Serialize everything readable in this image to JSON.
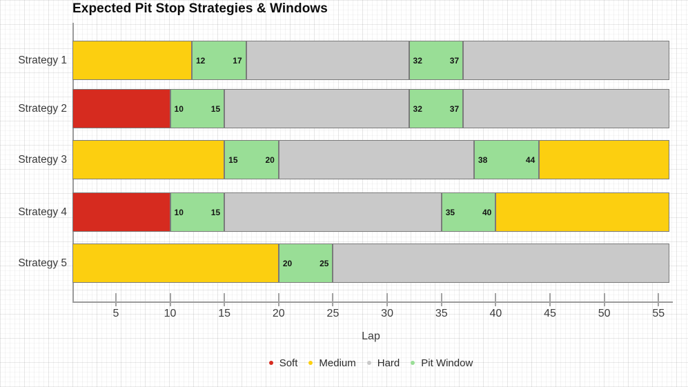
{
  "chart_data": {
    "type": "bar",
    "subtype": "horizontal-stacked-timeline",
    "title": "Expected Pit Stop Strategies & Windows",
    "xlabel": "Lap",
    "x_domain": [
      1,
      56
    ],
    "x_ticks": [
      5,
      10,
      15,
      20,
      25,
      30,
      35,
      40,
      45,
      50,
      55
    ],
    "grid": "fine graph-paper background",
    "legend_position": "bottom-center",
    "categories": [
      "Strategy 1",
      "Strategy 2",
      "Strategy 3",
      "Strategy 4",
      "Strategy 5"
    ],
    "colors": {
      "Soft": "#D62B1F",
      "Medium": "#FCCF10",
      "Hard": "#C9C9C9",
      "Pit Window": "#99DE96"
    },
    "legend": [
      {
        "label": "Soft",
        "color": "#D62B1F"
      },
      {
        "label": "Medium",
        "color": "#FCCF10"
      },
      {
        "label": "Hard",
        "color": "#C9C9C9"
      },
      {
        "label": "Pit Window",
        "color": "#99DE96"
      }
    ],
    "strategies": [
      {
        "name": "Strategy 1",
        "segments": [
          {
            "type": "Medium",
            "start": 1,
            "end": 12
          },
          {
            "type": "Pit Window",
            "start": 12,
            "end": 17,
            "labels": [
              "12",
              "17"
            ]
          },
          {
            "type": "Hard",
            "start": 17,
            "end": 32
          },
          {
            "type": "Pit Window",
            "start": 32,
            "end": 37,
            "labels": [
              "32",
              "37"
            ]
          },
          {
            "type": "Hard",
            "start": 37,
            "end": 56
          }
        ]
      },
      {
        "name": "Strategy 2",
        "segments": [
          {
            "type": "Soft",
            "start": 1,
            "end": 10
          },
          {
            "type": "Pit Window",
            "start": 10,
            "end": 15,
            "labels": [
              "10",
              "15"
            ]
          },
          {
            "type": "Hard",
            "start": 15,
            "end": 32
          },
          {
            "type": "Pit Window",
            "start": 32,
            "end": 37,
            "labels": [
              "32",
              "37"
            ]
          },
          {
            "type": "Hard",
            "start": 37,
            "end": 56
          }
        ]
      },
      {
        "name": "Strategy 3",
        "segments": [
          {
            "type": "Medium",
            "start": 1,
            "end": 15
          },
          {
            "type": "Pit Window",
            "start": 15,
            "end": 20,
            "labels": [
              "15",
              "20"
            ]
          },
          {
            "type": "Hard",
            "start": 20,
            "end": 38
          },
          {
            "type": "Pit Window",
            "start": 38,
            "end": 44,
            "labels": [
              "38",
              "44"
            ]
          },
          {
            "type": "Medium",
            "start": 44,
            "end": 56
          }
        ]
      },
      {
        "name": "Strategy 4",
        "segments": [
          {
            "type": "Soft",
            "start": 1,
            "end": 10
          },
          {
            "type": "Pit Window",
            "start": 10,
            "end": 15,
            "labels": [
              "10",
              "15"
            ]
          },
          {
            "type": "Hard",
            "start": 15,
            "end": 35
          },
          {
            "type": "Pit Window",
            "start": 35,
            "end": 40,
            "labels": [
              "35",
              "40"
            ]
          },
          {
            "type": "Medium",
            "start": 40,
            "end": 56
          }
        ]
      },
      {
        "name": "Strategy 5",
        "segments": [
          {
            "type": "Medium",
            "start": 1,
            "end": 20
          },
          {
            "type": "Pit Window",
            "start": 20,
            "end": 25,
            "labels": [
              "20",
              "25"
            ]
          },
          {
            "type": "Hard",
            "start": 25,
            "end": 56
          }
        ]
      }
    ]
  }
}
